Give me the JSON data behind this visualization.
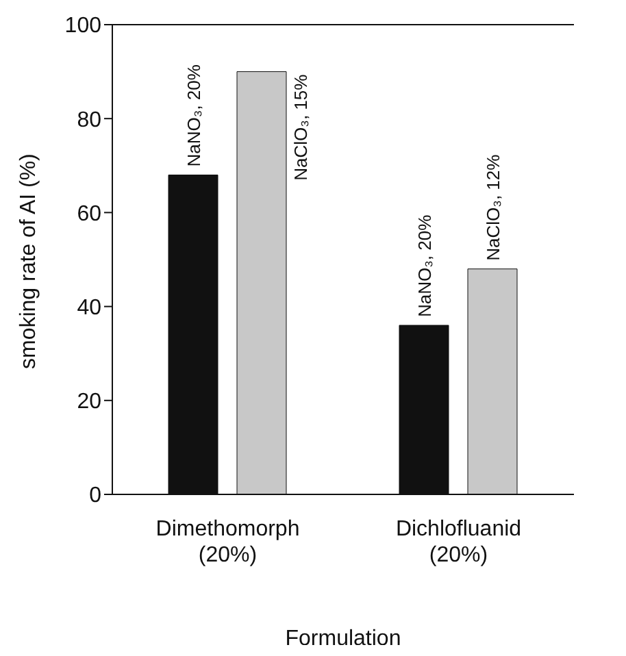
{
  "chart_data": {
    "type": "bar",
    "xlabel": "Formulation",
    "ylabel": "smoking rate of AI (%)",
    "categories": [
      "Dimethomorph (20%)",
      "Dichlofluanid (20%)"
    ],
    "series": [
      {
        "color": "#111111",
        "values": [
          68,
          36
        ]
      },
      {
        "color": "#c8c8c8",
        "values": [
          90,
          48
        ]
      }
    ],
    "ylim": [
      0,
      100
    ],
    "yticks": [
      0,
      20,
      40,
      60,
      80,
      100
    ],
    "grid": false,
    "legend": false,
    "annotations": [
      "NaNO₃, 20%",
      "NaClO₃, 15%",
      "NaNO₃, 20%",
      "NaClO₃, 12%"
    ]
  }
}
